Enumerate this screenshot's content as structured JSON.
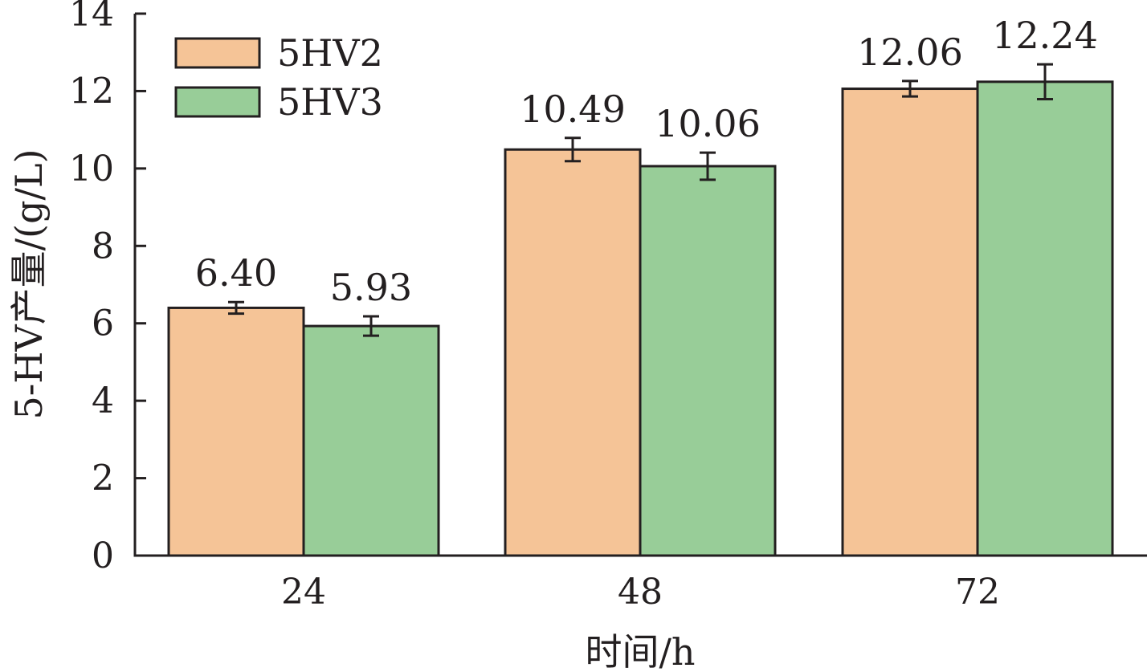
{
  "chart_data": {
    "type": "bar",
    "title": "",
    "xlabel": "时间/h",
    "ylabel": "5-HV产量/(g/L)",
    "categories": [
      "24",
      "48",
      "72"
    ],
    "ylim": [
      0,
      14
    ],
    "yticks": [
      0,
      2,
      4,
      6,
      8,
      10,
      12,
      14
    ],
    "series": [
      {
        "name": "5HV2",
        "color": "#f5c497",
        "values": [
          6.4,
          10.49,
          12.06
        ],
        "errors": [
          0.15,
          0.3,
          0.2
        ],
        "labels": [
          "6.40",
          "10.49",
          "12.06"
        ]
      },
      {
        "name": "5HV3",
        "color": "#98cd98",
        "values": [
          5.93,
          10.06,
          12.24
        ],
        "errors": [
          0.25,
          0.35,
          0.45
        ],
        "labels": [
          "5.93",
          "10.06",
          "12.24"
        ]
      }
    ],
    "legend": "top-left",
    "grid": false
  }
}
